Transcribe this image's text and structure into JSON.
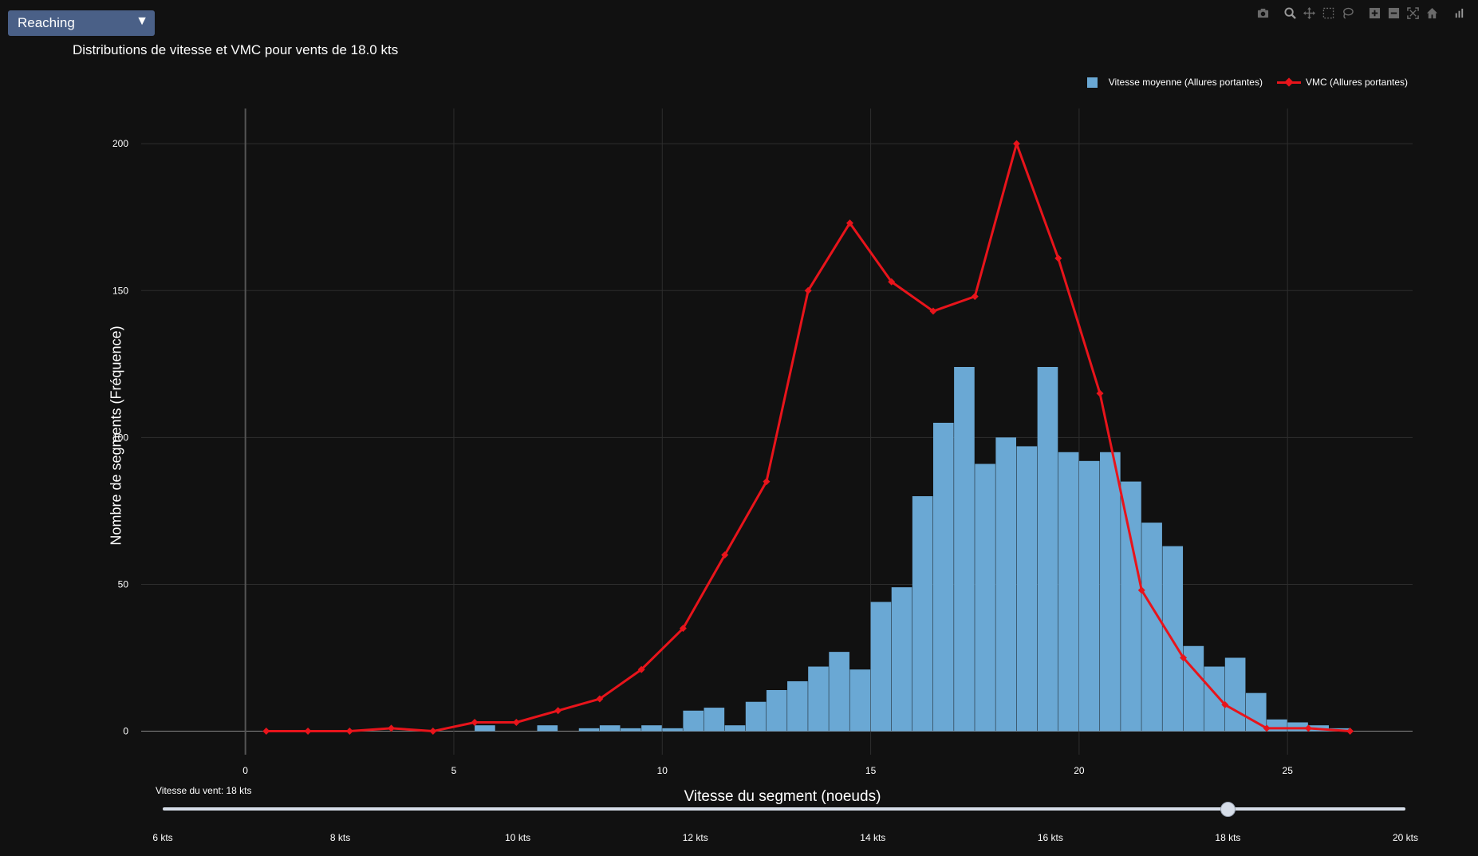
{
  "dropdown": {
    "value": "Reaching",
    "arrow": "▼"
  },
  "toolbar": [
    "camera-icon",
    "zoom-icon",
    "pan-icon",
    "box-select-icon",
    "lasso-icon",
    "zoom-in-icon",
    "zoom-out-icon",
    "autoscale-icon",
    "reset-axes-icon",
    "plotly-logo-icon"
  ],
  "colors": {
    "background": "#111111",
    "bar": "#6aa8d4",
    "line": "#e8141b",
    "grid": "#2e2e2e",
    "zeroline": "#888888",
    "slider": "#d6dde8"
  },
  "chart_data": {
    "type": "bar",
    "title": "Distributions de vitesse et VMC pour vents de 18.0 kts",
    "xlabel": "Vitesse du segment (noeuds)",
    "ylabel": "Nombre de segments (Fréquence)",
    "xlim": [
      -2.5,
      28
    ],
    "ylim": [
      -8,
      212
    ],
    "xticks": [
      0,
      5,
      10,
      15,
      20,
      25
    ],
    "yticks": [
      0,
      50,
      100,
      150,
      200
    ],
    "grid": true,
    "legend_position": "top-right",
    "series": [
      {
        "name": "Vitesse moyenne (Allures portantes)",
        "type": "histogram",
        "bin_width": 0.5,
        "bin_starts": [
          5.5,
          7.0,
          8.0,
          8.5,
          9.0,
          9.5,
          10.0,
          10.5,
          11.0,
          11.5,
          12.0,
          12.5,
          13.0,
          13.5,
          14.0,
          14.5,
          15.0,
          15.5,
          16.0,
          16.5,
          17.0,
          17.5,
          18.0,
          18.5,
          19.0,
          19.5,
          20.0,
          20.5,
          21.0,
          21.5,
          22.0,
          22.5,
          23.0,
          23.5,
          24.0,
          24.5,
          25.0,
          25.5,
          26.0
        ],
        "values": [
          2,
          2,
          1,
          2,
          1,
          2,
          1,
          7,
          8,
          2,
          10,
          14,
          17,
          22,
          27,
          21,
          44,
          49,
          80,
          105,
          124,
          91,
          100,
          97,
          124,
          95,
          92,
          95,
          85,
          71,
          63,
          29,
          22,
          25,
          13,
          4,
          3,
          2,
          1
        ]
      },
      {
        "name": "VMC (Allures portantes)",
        "type": "line",
        "x": [
          0.5,
          1.5,
          2.5,
          3.5,
          4.5,
          5.5,
          6.5,
          7.5,
          8.5,
          9.5,
          10.5,
          11.5,
          12.5,
          13.5,
          14.5,
          15.5,
          16.5,
          17.5,
          18.5,
          19.5,
          20.5,
          21.5,
          22.5,
          23.5,
          24.5,
          25.5,
          26.5
        ],
        "values": [
          0,
          0,
          0,
          1,
          0,
          3,
          3,
          7,
          11,
          21,
          35,
          60,
          85,
          150,
          173,
          153,
          143,
          148,
          200,
          161,
          115,
          48,
          25,
          9,
          1,
          1,
          0
        ]
      }
    ]
  },
  "slider": {
    "current_label": "Vitesse du vent: 18 kts",
    "min": 6,
    "max": 20,
    "value": 18,
    "ticks": [
      "6 kts",
      "8 kts",
      "10 kts",
      "12 kts",
      "14 kts",
      "16 kts",
      "18 kts",
      "20 kts"
    ]
  }
}
